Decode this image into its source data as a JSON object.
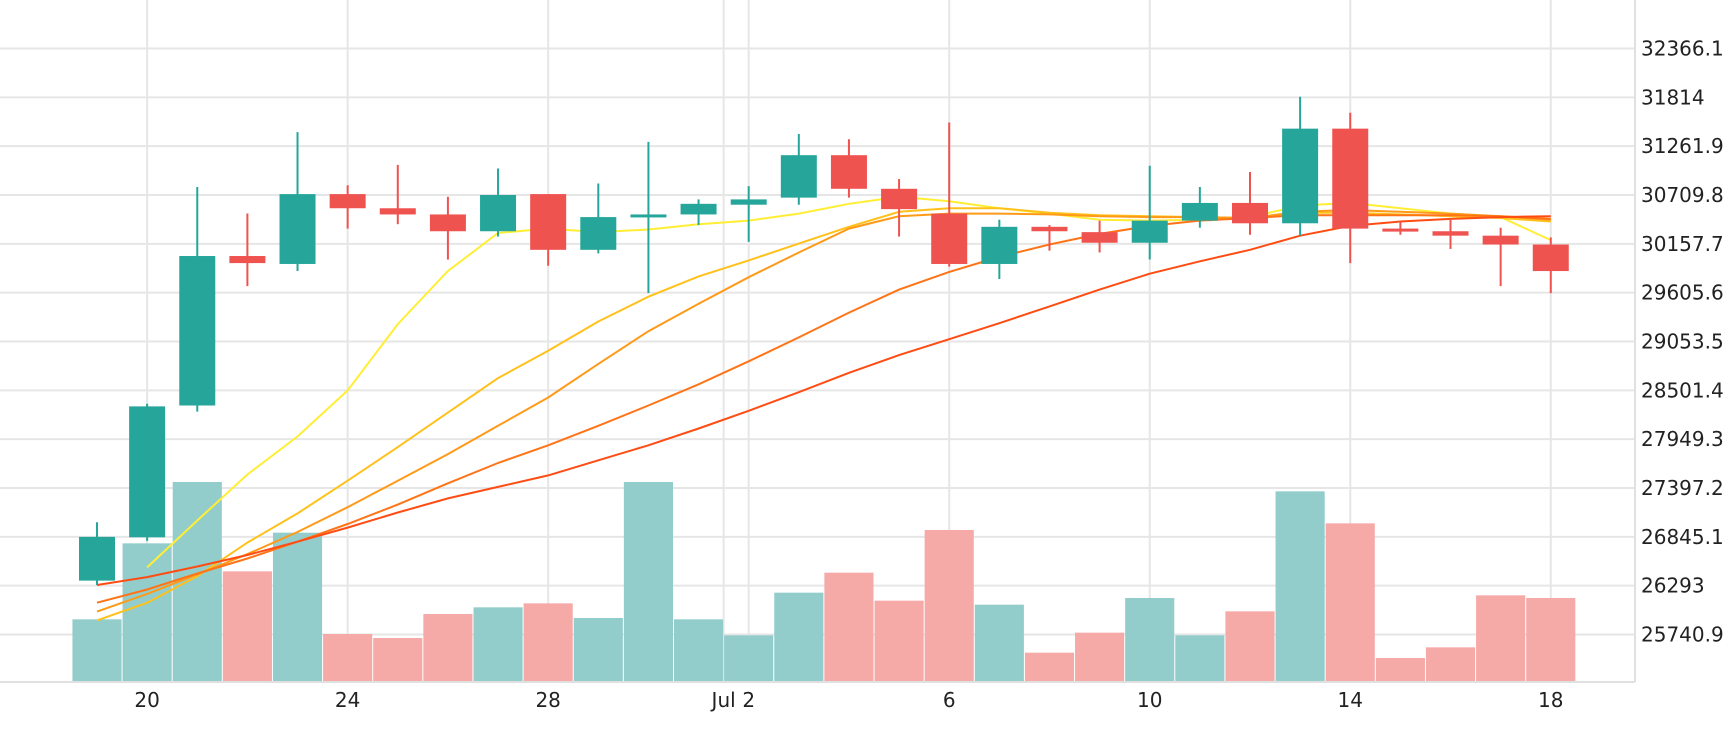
{
  "chart_data": {
    "type": "candlestick",
    "price_axis": {
      "ticks": [
        32366.1,
        31814,
        31261.9,
        30709.8,
        30157.7,
        29605.6,
        29053.5,
        28501.4,
        27949.3,
        27397.2,
        26845.1,
        26293,
        25740.9
      ],
      "labels": [
        "32366.1",
        "31814",
        "31261.9",
        "30709.8",
        "30157.7",
        "29605.6",
        "29053.5",
        "28501.4",
        "27949.3",
        "27397.2",
        "26845.1",
        "26293",
        "25740.9"
      ],
      "min": 25051,
      "max": 32918
    },
    "time_axis": {
      "labels": [
        {
          "text": "20",
          "day": 2
        },
        {
          "text": "24",
          "day": 6
        },
        {
          "text": "28",
          "day": 10
        },
        {
          "text": "Jul",
          "day": 13.5
        },
        {
          "text": "2",
          "day": 14
        },
        {
          "text": "6",
          "day": 18
        },
        {
          "text": "10",
          "day": 22
        },
        {
          "text": "14",
          "day": 26
        },
        {
          "text": "18",
          "day": 30
        }
      ]
    },
    "colors": {
      "up": "#26a69a",
      "down": "#ef5350",
      "volume_up": "#92cdcc",
      "volume_down": "#f5aaa8",
      "ma_lines": [
        "#ffee33",
        "#ffc11a",
        "#ff9a18",
        "#ff7417",
        "#ff4c12"
      ]
    },
    "candles": [
      {
        "date": "2023-06-19",
        "open": 26350,
        "high": 27010,
        "low": 26300,
        "close": 26845
      },
      {
        "date": "2023-06-20",
        "open": 26840,
        "high": 28350,
        "low": 26800,
        "close": 28320
      },
      {
        "date": "2023-06-21",
        "open": 28330,
        "high": 30800,
        "low": 28260,
        "close": 30020
      },
      {
        "date": "2023-06-22",
        "open": 30020,
        "high": 30500,
        "low": 29680,
        "close": 29940
      },
      {
        "date": "2023-06-23",
        "open": 29930,
        "high": 31420,
        "low": 29850,
        "close": 30720
      },
      {
        "date": "2023-06-24",
        "open": 30720,
        "high": 30820,
        "low": 30330,
        "close": 30560
      },
      {
        "date": "2023-06-25",
        "open": 30560,
        "high": 31050,
        "low": 30380,
        "close": 30490
      },
      {
        "date": "2023-06-26",
        "open": 30490,
        "high": 30690,
        "low": 29980,
        "close": 30300
      },
      {
        "date": "2023-06-27",
        "open": 30300,
        "high": 31010,
        "low": 30240,
        "close": 30710
      },
      {
        "date": "2023-06-28",
        "open": 30720,
        "high": 30720,
        "low": 29910,
        "close": 30090
      },
      {
        "date": "2023-06-29",
        "open": 30090,
        "high": 30840,
        "low": 30050,
        "close": 30460
      },
      {
        "date": "2023-06-30",
        "open": 30460,
        "high": 31310,
        "low": 29600,
        "close": 30490
      },
      {
        "date": "2023-07-01",
        "open": 30490,
        "high": 30660,
        "low": 30370,
        "close": 30610
      },
      {
        "date": "2023-07-02",
        "open": 30600,
        "high": 30810,
        "low": 30180,
        "close": 30660
      },
      {
        "date": "2023-07-03",
        "open": 30680,
        "high": 31400,
        "low": 30600,
        "close": 31160
      },
      {
        "date": "2023-07-04",
        "open": 31160,
        "high": 31340,
        "low": 30680,
        "close": 30780
      },
      {
        "date": "2023-07-05",
        "open": 30780,
        "high": 30890,
        "low": 30240,
        "close": 30550
      },
      {
        "date": "2023-07-06",
        "open": 30500,
        "high": 31530,
        "low": 29900,
        "close": 29930
      },
      {
        "date": "2023-07-07",
        "open": 29930,
        "high": 30430,
        "low": 29760,
        "close": 30350
      },
      {
        "date": "2023-07-08",
        "open": 30350,
        "high": 30370,
        "low": 30080,
        "close": 30300
      },
      {
        "date": "2023-07-09",
        "open": 30290,
        "high": 30420,
        "low": 30060,
        "close": 30170
      },
      {
        "date": "2023-07-10",
        "open": 30170,
        "high": 31040,
        "low": 29980,
        "close": 30420
      },
      {
        "date": "2023-07-11",
        "open": 30420,
        "high": 30800,
        "low": 30340,
        "close": 30620
      },
      {
        "date": "2023-07-12",
        "open": 30620,
        "high": 30970,
        "low": 30260,
        "close": 30390
      },
      {
        "date": "2023-07-13",
        "open": 30390,
        "high": 31820,
        "low": 30250,
        "close": 31460
      },
      {
        "date": "2023-07-14",
        "open": 31460,
        "high": 31640,
        "low": 29940,
        "close": 30330
      },
      {
        "date": "2023-07-15",
        "open": 30330,
        "high": 30410,
        "low": 30260,
        "close": 30300
      },
      {
        "date": "2023-07-16",
        "open": 30300,
        "high": 30450,
        "low": 30100,
        "close": 30250
      },
      {
        "date": "2023-07-17",
        "open": 30250,
        "high": 30340,
        "low": 29680,
        "close": 30150
      },
      {
        "date": "2023-07-18",
        "open": 30150,
        "high": 30230,
        "low": 29600,
        "close": 29850
      }
    ],
    "volume": {
      "max": 15000,
      "values": [
        4700,
        10400,
        15000,
        8300,
        11200,
        3600,
        3300,
        5100,
        5600,
        5900,
        4800,
        15000,
        4700,
        3500,
        6700,
        8200,
        6100,
        11400,
        5800,
        2200,
        3700,
        6300,
        3500,
        5300,
        14300,
        11900,
        1800,
        2600,
        6500,
        6300
      ]
    },
    "moving_averages": [
      {
        "color": "#ffee33",
        "values": [
          null,
          26500,
          27030,
          27550,
          27980,
          28500,
          29250,
          29850,
          30280,
          30330,
          30290,
          30320,
          30380,
          30420,
          30500,
          30610,
          30690,
          30640,
          30560,
          30500,
          30430,
          30420,
          30430,
          30460,
          30590,
          30620,
          30560,
          30500,
          30460,
          30200
        ]
      },
      {
        "color": "#ffc11a",
        "values": [
          25900,
          26100,
          26400,
          26780,
          27110,
          27480,
          27860,
          28250,
          28640,
          28950,
          29280,
          29560,
          29790,
          29970,
          30160,
          30350,
          30520,
          30560,
          30560,
          30510,
          30480,
          30470,
          30460,
          30450,
          30510,
          30510,
          30490,
          30470,
          30450,
          30410
        ]
      },
      {
        "color": "#ff9a18",
        "values": [
          26000,
          26200,
          26420,
          26650,
          26900,
          27180,
          27480,
          27780,
          28100,
          28420,
          28800,
          29170,
          29480,
          29780,
          30060,
          30330,
          30470,
          30500,
          30500,
          30490,
          30470,
          30460,
          30460,
          30450,
          30520,
          30540,
          30520,
          30500,
          30470,
          30430
        ]
      },
      {
        "color": "#ff7417",
        "values": [
          26100,
          26250,
          26430,
          26600,
          26790,
          26990,
          27210,
          27450,
          27680,
          27880,
          28100,
          28330,
          28570,
          28830,
          29100,
          29380,
          29640,
          29840,
          30010,
          30150,
          30270,
          30360,
          30420,
          30450,
          30480,
          30480,
          30480,
          30480,
          30470,
          30440
        ]
      },
      {
        "color": "#ff4c12",
        "values": [
          26300,
          26390,
          26510,
          26640,
          26790,
          26950,
          27120,
          27280,
          27410,
          27540,
          27710,
          27880,
          28070,
          28270,
          28480,
          28700,
          28900,
          29080,
          29260,
          29450,
          29640,
          29820,
          29960,
          30090,
          30250,
          30360,
          30410,
          30440,
          30460,
          30470
        ]
      }
    ]
  }
}
